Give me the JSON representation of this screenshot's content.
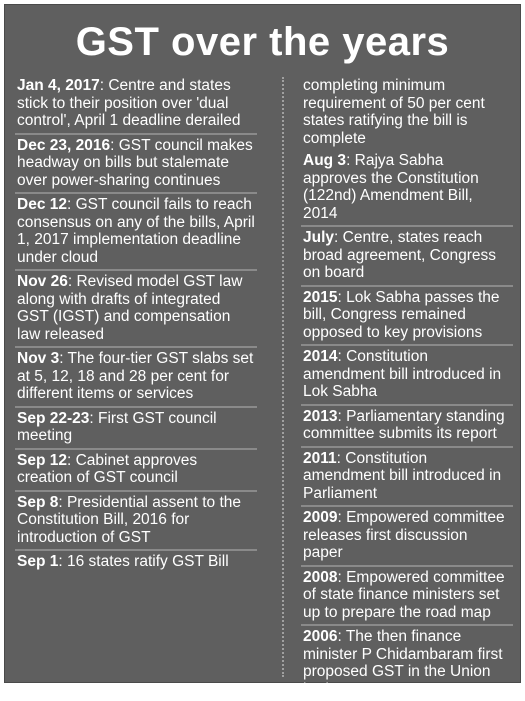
{
  "title": "GST over the years",
  "left_entries": [
    {
      "date": "Jan 4, 2017",
      "text": ": Centre and states stick to their position over 'dual control', April 1 deadline derailed"
    },
    {
      "date": "Dec 23, 2016",
      "text": ": GST council makes headway on bills but stalemate over power-sharing continues"
    },
    {
      "date": "Dec 12",
      "text": ": GST council fails to reach consensus on any of the bills, April 1, 2017 implementation deadline under cloud"
    },
    {
      "date": "Nov 26",
      "text": ": Revised model GST law along with drafts of integrated GST (IGST) and compensation law released"
    },
    {
      "date": "Nov 3",
      "text": ": The four-tier GST slabs set at 5, 12, 18 and 28 per cent for different items or services"
    },
    {
      "date": "Sep 22-23",
      "text": ": First GST council meeting"
    },
    {
      "date": "Sep 12",
      "text": ": Cabinet approves creation of GST council"
    },
    {
      "date": "Sep 8",
      "text": ": Presidential assent to the Constitution  Bill, 2016 for introduction of GST"
    },
    {
      "date": "Sep 1",
      "text": ": 16 states ratify GST Bill"
    }
  ],
  "right_continuation": "completing minimum requirement of 50 per cent states ratifying the bill is complete",
  "right_entries": [
    {
      "date": "Aug 3",
      "text": ": Rajya Sabha approves the Constitution (122nd) Amendment Bill, 2014"
    },
    {
      "date": "July",
      "text": ": Centre, states reach broad agreement, Congress on board"
    },
    {
      "date": "2015",
      "text": ": Lok Sabha passes the bill, Congress remained opposed to key provisions"
    },
    {
      "date": "2014",
      "text": ": Constitution amendment bill introduced in Lok Sabha"
    },
    {
      "date": "2013",
      "text": ": Parliamentary standing committee submits its report"
    },
    {
      "date": "2011",
      "text": ": Constitution amendment bill introduced in Parliament"
    },
    {
      "date": "2009",
      "text": ": Empowered committee releases first discussion paper"
    },
    {
      "date": "2008",
      "text": ": Empowered committee of state finance ministers set up to prepare the road map"
    },
    {
      "date": "2006",
      "text": ": The then finance minister P Chidambaram first proposed GST in the Union budget"
    }
  ],
  "colors": {
    "background": "#5f5f5f",
    "text": "#ffffff",
    "divider": "#8a8a8a"
  }
}
